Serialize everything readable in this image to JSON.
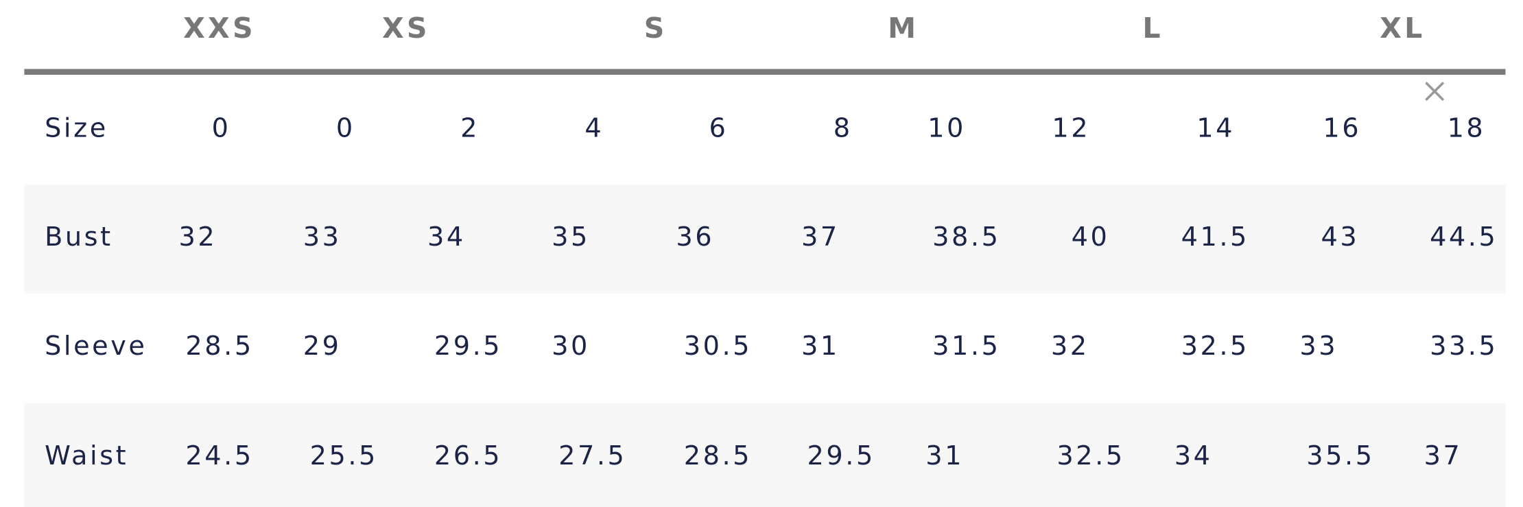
{
  "header": {
    "sizes": [
      "XXS",
      "XS",
      "S",
      "M",
      "L",
      "XL"
    ]
  },
  "table": {
    "rows": [
      {
        "label": "Size",
        "values": [
          "0",
          "0",
          "2",
          "4",
          "6",
          "8",
          "10",
          "12",
          "14",
          "16",
          "18"
        ]
      },
      {
        "label": "Bust",
        "values": [
          "32",
          "33",
          "34",
          "35",
          "36",
          "37",
          "38.5",
          "40",
          "41.5",
          "43",
          "44.5"
        ]
      },
      {
        "label": "Sleeve",
        "values": [
          "28.5",
          "29",
          "29.5",
          "30",
          "30.5",
          "31",
          "31.5",
          "32",
          "32.5",
          "33",
          "33.5"
        ]
      },
      {
        "label": "Waist",
        "values": [
          "24.5",
          "25.5",
          "26.5",
          "27.5",
          "28.5",
          "29.5",
          "31",
          "32.5",
          "34",
          "35.5",
          "37"
        ]
      }
    ]
  }
}
